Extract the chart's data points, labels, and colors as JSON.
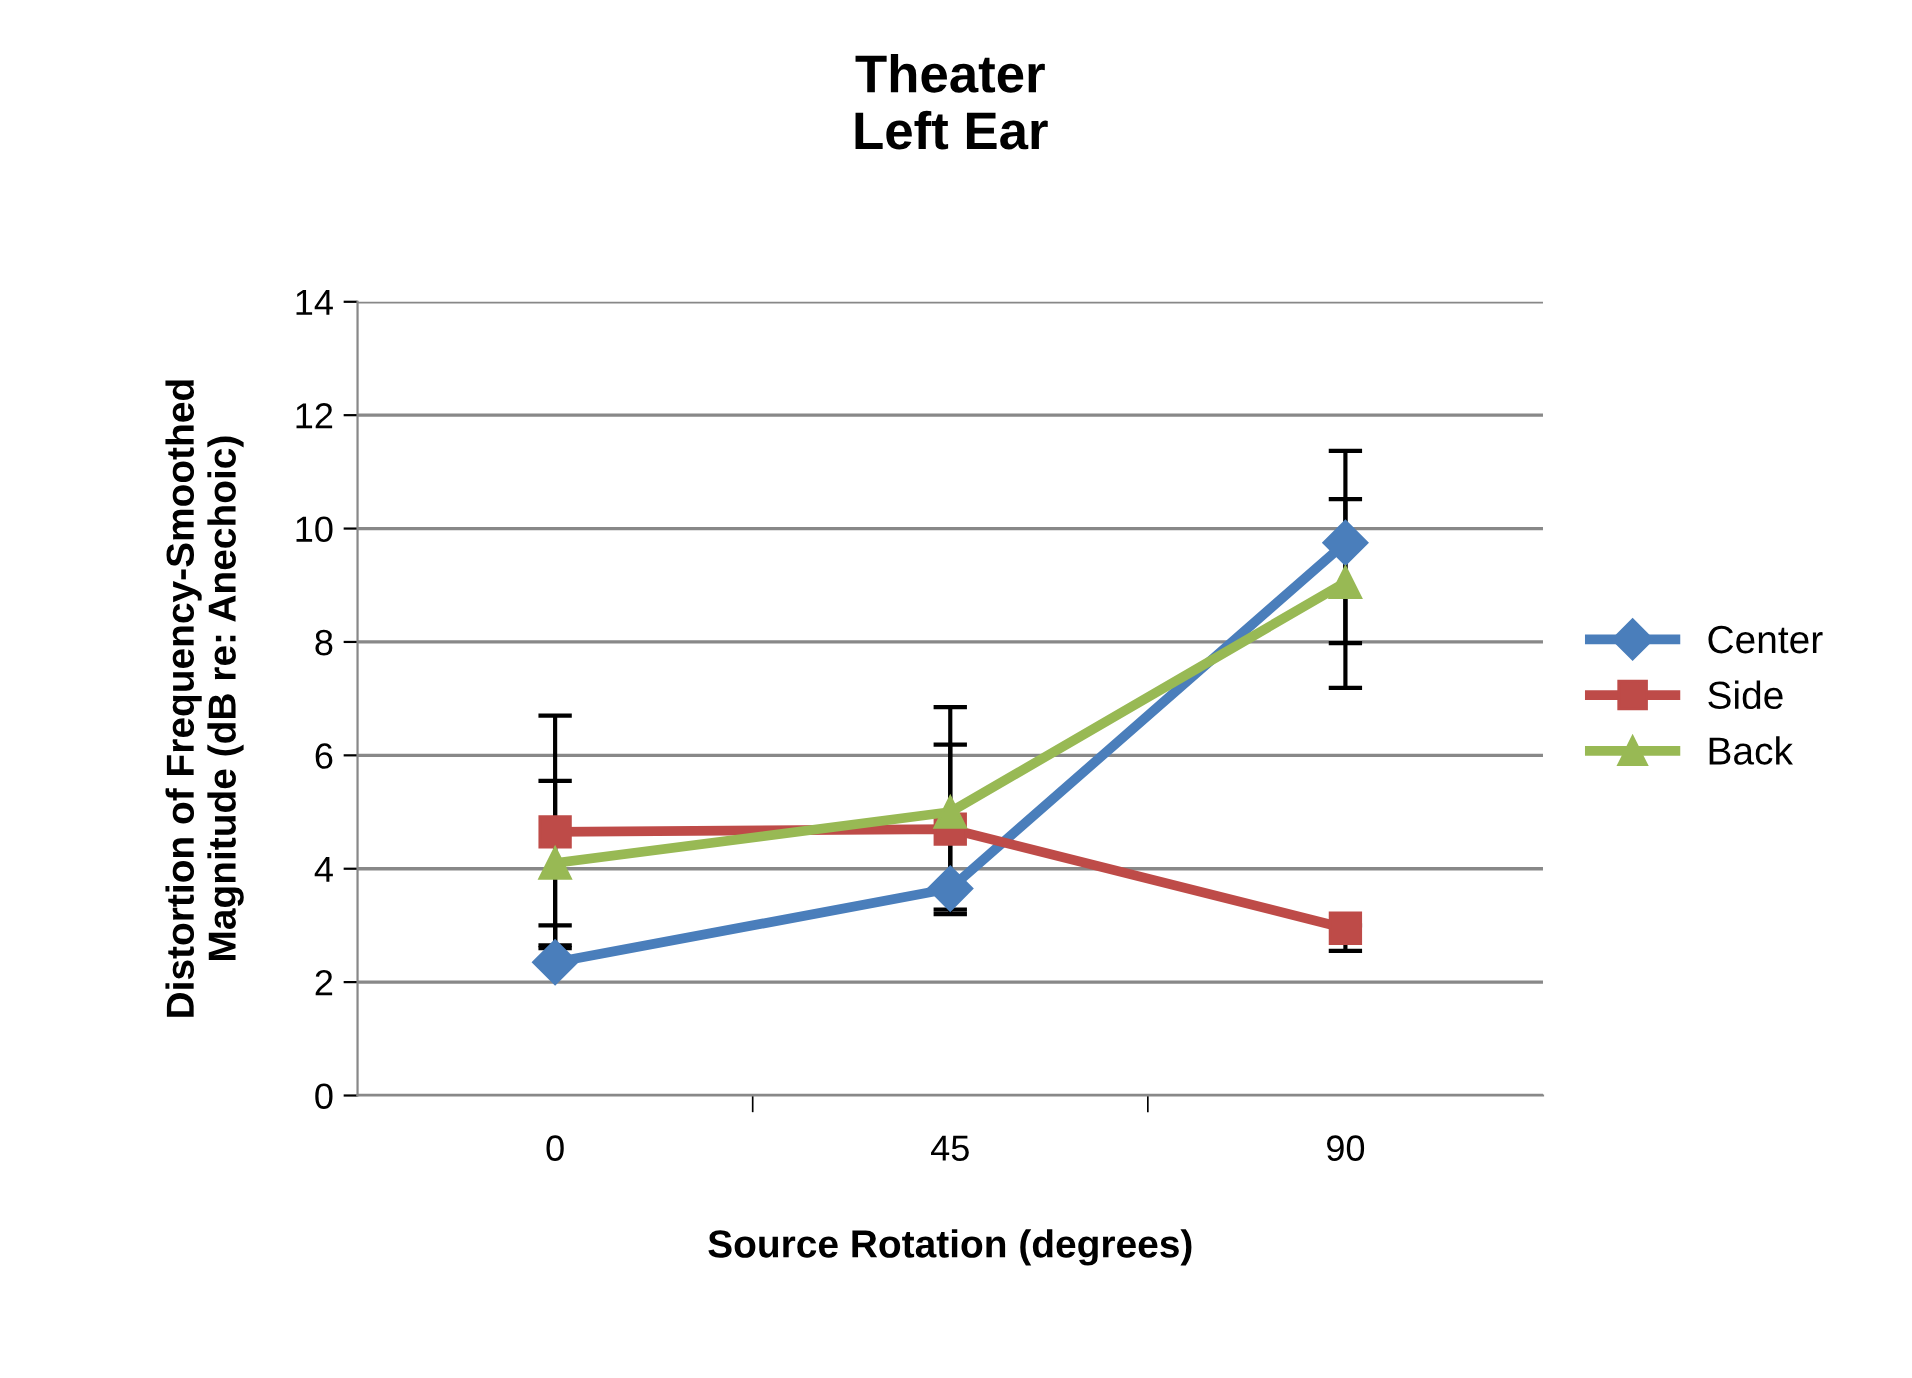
{
  "chart_data": {
    "type": "line",
    "title": "Theater\nLeft Ear",
    "xlabel": "Source Rotation (degrees)",
    "ylabel": "Distortion of Frequency-Smoothed\nMagnitude (dB re: Anechoic)",
    "categories": [
      "0",
      "45",
      "90"
    ],
    "series": [
      {
        "name": "Center",
        "color": "#4a7ebb",
        "marker": "diamond",
        "values": [
          2.35,
          3.65,
          9.75
        ],
        "errors": [
          [
            2.35,
            3.0
          ],
          null,
          [
            7.98,
            11.37
          ]
        ]
      },
      {
        "name": "Side",
        "color": "#be4b48",
        "marker": "square",
        "values": [
          4.65,
          4.7,
          2.95
        ],
        "errors": [
          [
            2.6,
            6.7
          ],
          [
            3.28,
            6.19
          ],
          [
            2.55,
            3.0
          ]
        ]
      },
      {
        "name": "Back",
        "color": "#98b954",
        "marker": "triangle",
        "values": [
          4.1,
          5.0,
          9.05
        ],
        "errors": [
          [
            2.65,
            5.55
          ],
          [
            3.2,
            6.85
          ],
          [
            7.19,
            10.52
          ]
        ]
      }
    ],
    "ylim": [
      0,
      14
    ],
    "yticks": [
      0,
      2,
      4,
      6,
      8,
      10,
      12,
      14
    ],
    "grid": "y",
    "legend": "right"
  }
}
